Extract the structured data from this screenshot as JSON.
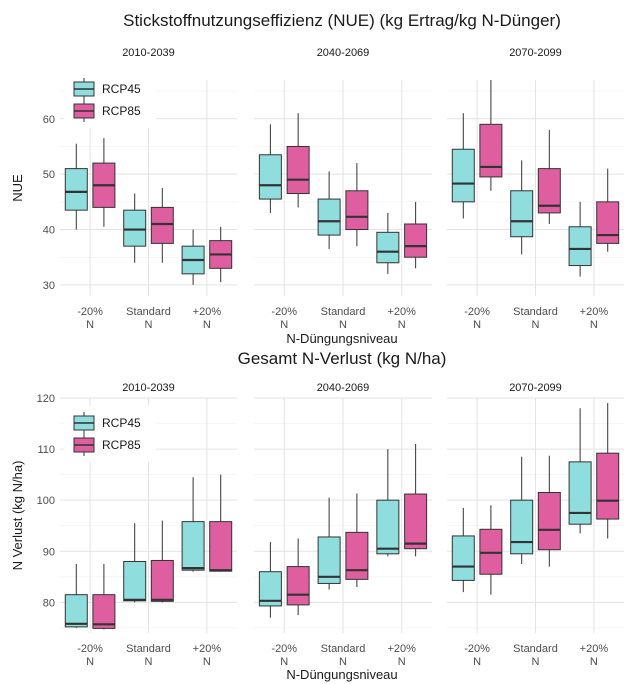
{
  "chart_data": [
    {
      "type": "boxplot",
      "title": "Stickstoffnutzungseffizienz (NUE) (kg Ertrag/kg N-Dünger)",
      "xlabel": "N-Düngungsniveau",
      "ylabel": "NUE",
      "ylim": [
        28,
        67
      ],
      "yticks": [
        30,
        40,
        50,
        60
      ],
      "facets": [
        "2010-2039",
        "2040-2069",
        "2070-2099"
      ],
      "categories": [
        [
          "-20%",
          "N"
        ],
        [
          "Standard",
          "N"
        ],
        [
          "+20%",
          "N"
        ]
      ],
      "legend": {
        "entries": [
          "RCP45",
          "RCP85"
        ],
        "placement": "top-left"
      },
      "colors": {
        "RCP45": "#8fdddd",
        "RCP85": "#df5e9f"
      },
      "series": [
        {
          "name": "RCP45",
          "boxes": [
            [
              [
                40.0,
                43.5,
                46.8,
                51.0,
                55.5
              ],
              [
                34.0,
                37.0,
                40.0,
                43.5,
                46.5
              ],
              [
                30.0,
                32.0,
                34.5,
                37.0,
                40.0
              ]
            ],
            [
              [
                43.0,
                45.5,
                48.0,
                53.5,
                59.0
              ],
              [
                36.5,
                39.0,
                41.5,
                45.5,
                50.5
              ],
              [
                32.0,
                34.0,
                36.0,
                39.5,
                43.0
              ]
            ],
            [
              [
                42.0,
                45.0,
                48.3,
                54.5,
                61.0
              ],
              [
                35.5,
                38.7,
                41.5,
                47.0,
                52.5
              ],
              [
                31.5,
                33.5,
                36.5,
                40.5,
                45.0
              ]
            ]
          ]
        },
        {
          "name": "RCP85",
          "boxes": [
            [
              [
                40.5,
                44.0,
                48.0,
                52.0,
                56.5
              ],
              [
                34.0,
                37.5,
                41.0,
                44.0,
                47.5
              ],
              [
                30.5,
                33.0,
                35.5,
                38.0,
                40.5
              ]
            ],
            [
              [
                44.0,
                46.5,
                49.0,
                55.0,
                61.0
              ],
              [
                37.0,
                40.0,
                42.3,
                47.0,
                52.0
              ],
              [
                33.0,
                35.0,
                37.0,
                41.0,
                45.0
              ]
            ],
            [
              [
                47.0,
                49.5,
                51.3,
                59.0,
                67.0
              ],
              [
                41.0,
                43.0,
                44.3,
                51.0,
                58.0
              ],
              [
                36.0,
                37.5,
                39.0,
                45.0,
                51.0
              ]
            ]
          ]
        }
      ]
    },
    {
      "type": "boxplot",
      "title": "Gesamt N-Verlust (kg N/ha)",
      "xlabel": "N-Düngungsniveau",
      "ylabel": "N Verlust (kg N/ha)",
      "ylim": [
        74,
        120
      ],
      "yticks": [
        80,
        90,
        100,
        110,
        120
      ],
      "facets": [
        "2010-2039",
        "2040-2069",
        "2070-2099"
      ],
      "categories": [
        [
          "-20%",
          "N"
        ],
        [
          "Standard",
          "N"
        ],
        [
          "+20%",
          "N"
        ]
      ],
      "legend": {
        "entries": [
          "RCP45",
          "RCP85"
        ],
        "placement": "top-left"
      },
      "colors": {
        "RCP45": "#8fdddd",
        "RCP85": "#df5e9f"
      },
      "series": [
        {
          "name": "RCP45",
          "boxes": [
            [
              [
                75.0,
                75.2,
                75.8,
                81.5,
                87.5
              ],
              [
                80.0,
                80.3,
                80.5,
                88.0,
                95.5
              ],
              [
                86.0,
                86.3,
                86.7,
                95.8,
                104.5
              ]
            ],
            [
              [
                77.0,
                79.3,
                80.3,
                86.0,
                91.8
              ],
              [
                82.5,
                83.7,
                85.0,
                92.8,
                100.5
              ],
              [
                89.0,
                89.5,
                90.5,
                100.0,
                110.0
              ]
            ],
            [
              [
                82.0,
                84.3,
                87.0,
                93.0,
                98.5
              ],
              [
                87.5,
                89.5,
                91.8,
                100.0,
                108.5
              ],
              [
                93.5,
                95.3,
                97.5,
                107.5,
                118.0
              ]
            ]
          ]
        },
        {
          "name": "RCP85",
          "boxes": [
            [
              [
                74.7,
                74.9,
                75.7,
                81.5,
                87.5
              ],
              [
                80.0,
                80.2,
                80.5,
                88.2,
                96.0
              ],
              [
                86.0,
                86.1,
                86.3,
                95.8,
                105.0
              ]
            ],
            [
              [
                77.5,
                79.5,
                81.5,
                87.0,
                92.5
              ],
              [
                83.0,
                84.5,
                86.3,
                93.7,
                101.3
              ],
              [
                89.0,
                90.5,
                91.5,
                101.2,
                111.0
              ]
            ],
            [
              [
                81.5,
                85.5,
                89.7,
                94.3,
                99.0
              ],
              [
                87.0,
                90.3,
                94.2,
                101.5,
                108.7
              ],
              [
                92.5,
                96.3,
                99.9,
                109.2,
                119.0
              ]
            ]
          ]
        }
      ]
    }
  ]
}
